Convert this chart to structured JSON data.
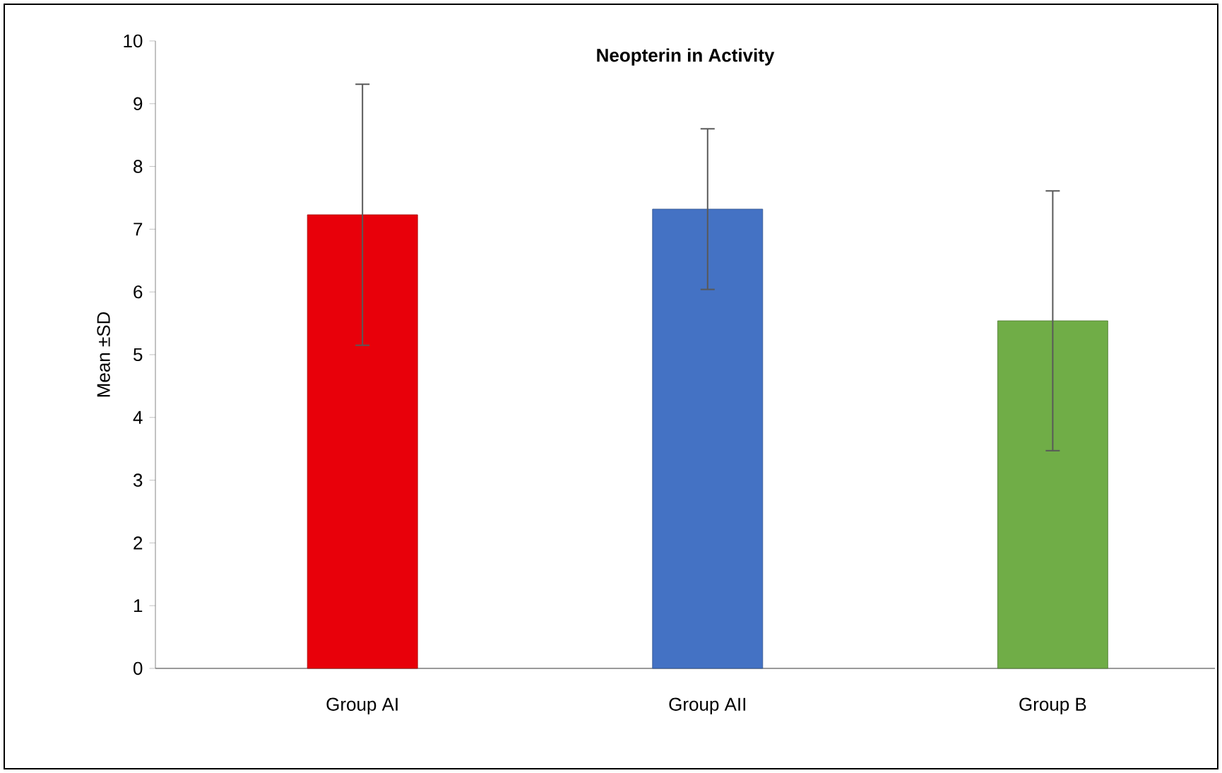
{
  "chart_data": {
    "type": "bar",
    "title": "Neopterin in Activity",
    "ylabel": "Mean ±SD",
    "categories": [
      "Group AI",
      "Group AII",
      "Group B"
    ],
    "values": [
      7.23,
      7.32,
      5.54
    ],
    "errors": [
      2.08,
      1.28,
      2.07
    ],
    "colors": [
      "#e8000a",
      "#4472c4",
      "#70ad47"
    ],
    "ylim": [
      0,
      10
    ],
    "yticks": [
      0,
      1,
      2,
      3,
      4,
      5,
      6,
      7,
      8,
      9,
      10
    ],
    "grid": false
  }
}
